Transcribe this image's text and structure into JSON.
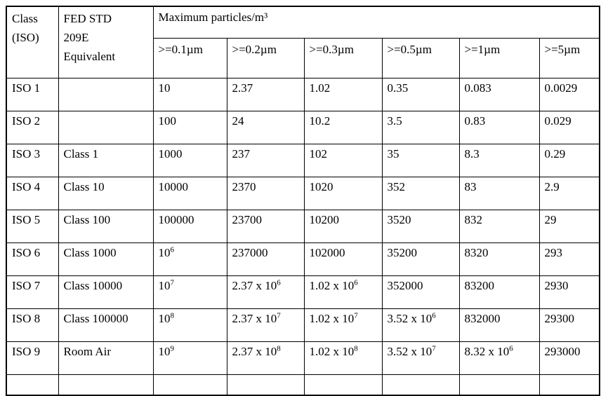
{
  "table": {
    "header": {
      "class_iso": "Class\n(ISO)",
      "fed_std": "FED STD\n209E\nEquivalent",
      "max_particles": "Maximum particles/m³"
    },
    "columns": [
      {
        "label": ">=0.1µm"
      },
      {
        "label": ">=0.2µm"
      },
      {
        "label": ">=0.3µm"
      },
      {
        "label": ">=0.5µm"
      },
      {
        "label": ">=1µm"
      },
      {
        "label": ">=5µm"
      }
    ],
    "rows": [
      {
        "iso_class": "ISO 1",
        "fed_std": "",
        "values": [
          "10",
          "2.37",
          "1.02",
          "0.35",
          "0.083",
          "0.0029"
        ]
      },
      {
        "iso_class": "ISO 2",
        "fed_std": "",
        "values": [
          "100",
          "24",
          "10.2",
          "3.5",
          "0.83",
          "0.029"
        ]
      },
      {
        "iso_class": "ISO 3",
        "fed_std": "Class 1",
        "values": [
          "1000",
          "237",
          "102",
          "35",
          "8.3",
          "0.29"
        ]
      },
      {
        "iso_class": "ISO 4",
        "fed_std": "Class 10",
        "values": [
          "10000",
          "2370",
          "1020",
          "352",
          "83",
          "2.9"
        ]
      },
      {
        "iso_class": "ISO 5",
        "fed_std": "Class 100",
        "values": [
          "100000",
          "23700",
          "10200",
          "3520",
          "832",
          "29"
        ]
      },
      {
        "iso_class": "ISO 6",
        "fed_std": "Class 1000",
        "values": [
          "10^6",
          "237000",
          "102000",
          "35200",
          "8320",
          "293"
        ]
      },
      {
        "iso_class": "ISO 7",
        "fed_std": "Class 10000",
        "values": [
          "10^7",
          "2.37 x 10^6",
          "1.02 x 10^6",
          "352000",
          "83200",
          "2930"
        ]
      },
      {
        "iso_class": "ISO 8",
        "fed_std": "Class 100000",
        "values": [
          "10^8",
          "2.37 x 10^7",
          "1.02 x 10^7",
          "3.52 x 10^6",
          "832000",
          "29300"
        ]
      },
      {
        "iso_class": "ISO 9",
        "fed_std": "Room Air",
        "values": [
          "10^9",
          "2.37 x 10^8",
          "1.02 x 10^8",
          "3.52 x 10^7",
          "8.32 x 10^6",
          "293000"
        ]
      }
    ],
    "colors": {
      "border": "#000000",
      "text": "#000000",
      "background": "#ffffff"
    }
  }
}
